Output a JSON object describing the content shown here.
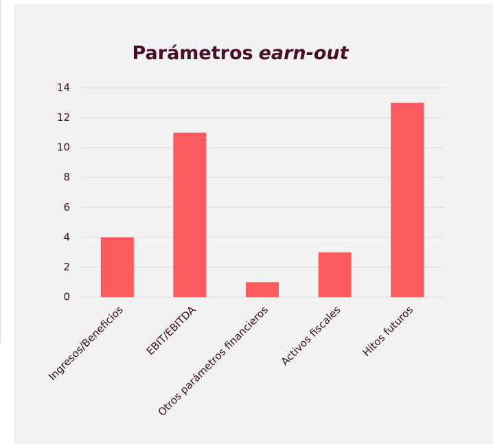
{
  "chart_data": {
    "type": "bar",
    "title": [
      "Parámetros",
      "earn-out"
    ],
    "categories": [
      "Ingresos/Beneficios",
      "EBIT/EBITDA",
      "Otros parámetros financieros",
      "Activos fiscales",
      "Hitos futuros"
    ],
    "values": [
      4,
      11,
      1,
      3,
      13
    ],
    "color": "#fd5a60",
    "ylim": [
      0,
      14
    ],
    "yticks": [
      0,
      2,
      4,
      6,
      8,
      10,
      12,
      14
    ],
    "grid": true
  }
}
